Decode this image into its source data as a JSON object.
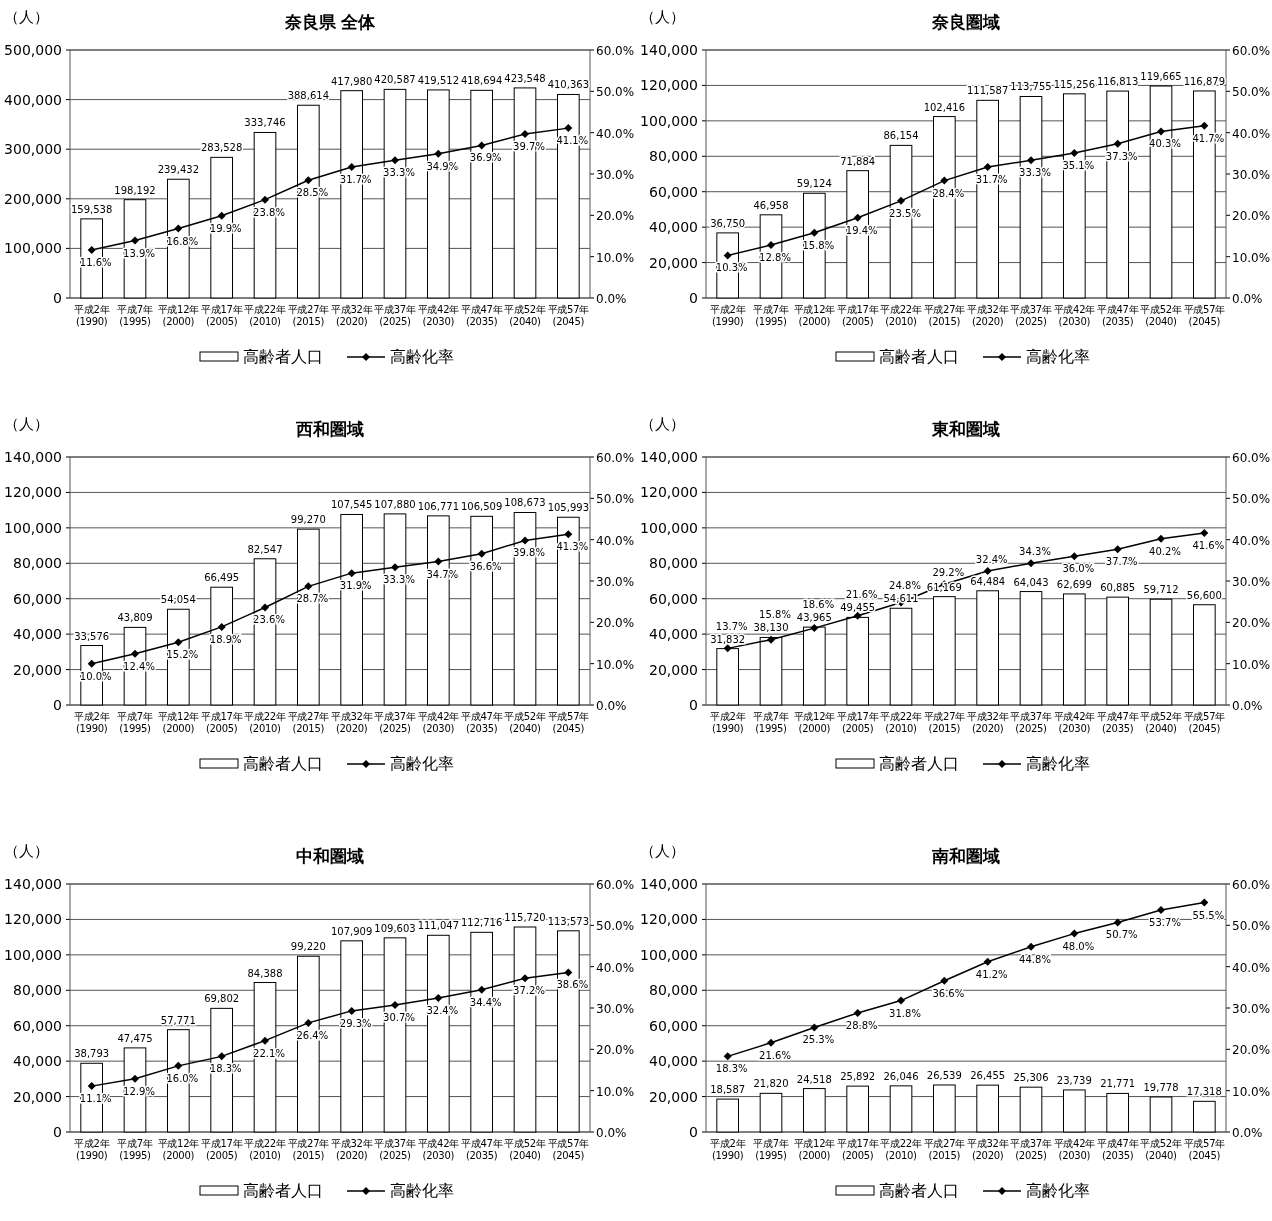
{
  "chart_data": [
    {
      "type": "bar",
      "title": "奈良県 全体",
      "ylabel": "（人）",
      "categories": [
        "平成2年\n(1990)",
        "平成7年\n(1995)",
        "平成12年\n(2000)",
        "平成17年\n(2005)",
        "平成22年\n(2010)",
        "平成27年\n(2015)",
        "平成32年\n(2020)",
        "平成37年\n(2025)",
        "平成42年\n(2030)",
        "平成47年\n(2035)",
        "平成52年\n(2040)",
        "平成57年\n(2045)"
      ],
      "ylim": [
        0,
        500000
      ],
      "yticks": [
        {
          "value": 0,
          "label": "0"
        },
        {
          "value": 100000,
          "label": "100,000"
        },
        {
          "value": 200000,
          "label": "200,000"
        },
        {
          "value": 300000,
          "label": "300,000"
        },
        {
          "value": 400000,
          "label": "400,000"
        },
        {
          "value": 500000,
          "label": "500,000"
        }
      ],
      "y2lim": [
        0,
        60
      ],
      "y2ticks": [
        {
          "value": 0,
          "label": "0.0%"
        },
        {
          "value": 10,
          "label": "10.0%"
        },
        {
          "value": 20,
          "label": "20.0%"
        },
        {
          "value": 30,
          "label": "30.0%"
        },
        {
          "value": 40,
          "label": "40.0%"
        },
        {
          "value": 50,
          "label": "50.0%"
        },
        {
          "value": 60,
          "label": "60.0%"
        }
      ],
      "grid": "y",
      "legend": "bottom",
      "series": [
        {
          "name": "高齢者人口",
          "type": "bar",
          "color": "#ffffff",
          "values": [
            159538,
            198192,
            239432,
            283528,
            333746,
            388614,
            417980,
            420587,
            419512,
            418694,
            423548,
            410363
          ],
          "value_labels": [
            "159,538",
            "198,192",
            "239,432",
            "283,528",
            "333,746",
            "388,614",
            "417,980",
            "420,587",
            "419,512",
            "418,694",
            "423,548",
            "410,363"
          ]
        },
        {
          "name": "高齢化率",
          "type": "line",
          "axis": "y2",
          "color": "#000000",
          "marker": "diamond",
          "values": [
            11.6,
            13.9,
            16.8,
            19.9,
            23.8,
            28.5,
            31.7,
            33.3,
            34.9,
            36.9,
            39.7,
            41.1
          ],
          "value_labels": [
            "11.6%",
            "13.9%",
            "16.8%",
            "19.9%",
            "23.8%",
            "28.5%",
            "31.7%",
            "33.3%",
            "34.9%",
            "36.9%",
            "39.7%",
            "41.1%"
          ]
        }
      ]
    },
    {
      "type": "bar",
      "title": "奈良圏域",
      "ylabel": "（人）",
      "categories": [
        "平成2年\n(1990)",
        "平成7年\n(1995)",
        "平成12年\n(2000)",
        "平成17年\n(2005)",
        "平成22年\n(2010)",
        "平成27年\n(2015)",
        "平成32年\n(2020)",
        "平成37年\n(2025)",
        "平成42年\n(2030)",
        "平成47年\n(2035)",
        "平成52年\n(2040)",
        "平成57年\n(2045)"
      ],
      "ylim": [
        0,
        140000
      ],
      "yticks": [
        {
          "value": 0,
          "label": "0"
        },
        {
          "value": 20000,
          "label": "20,000"
        },
        {
          "value": 40000,
          "label": "40,000"
        },
        {
          "value": 60000,
          "label": "60,000"
        },
        {
          "value": 80000,
          "label": "80,000"
        },
        {
          "value": 100000,
          "label": "100,000"
        },
        {
          "value": 120000,
          "label": "120,000"
        },
        {
          "value": 140000,
          "label": "140,000"
        }
      ],
      "y2lim": [
        0,
        60
      ],
      "y2ticks": [
        {
          "value": 0,
          "label": "0.0%"
        },
        {
          "value": 10,
          "label": "10.0%"
        },
        {
          "value": 20,
          "label": "20.0%"
        },
        {
          "value": 30,
          "label": "30.0%"
        },
        {
          "value": 40,
          "label": "40.0%"
        },
        {
          "value": 50,
          "label": "50.0%"
        },
        {
          "value": 60,
          "label": "60.0%"
        }
      ],
      "grid": "y",
      "legend": "bottom",
      "series": [
        {
          "name": "高齢者人口",
          "type": "bar",
          "color": "#ffffff",
          "values": [
            36750,
            46958,
            59124,
            71884,
            86154,
            102416,
            111587,
            113755,
            115256,
            116813,
            119665,
            116879
          ],
          "value_labels": [
            "36,750",
            "46,958",
            "59,124",
            "71,884",
            "86,154",
            "102,416",
            "111,587",
            "113,755",
            "115,256",
            "116,813",
            "119,665",
            "116,879"
          ]
        },
        {
          "name": "高齢化率",
          "type": "line",
          "axis": "y2",
          "color": "#000000",
          "marker": "diamond",
          "values": [
            10.3,
            12.8,
            15.8,
            19.4,
            23.5,
            28.4,
            31.7,
            33.3,
            35.1,
            37.3,
            40.3,
            41.7
          ],
          "value_labels": [
            "10.3%",
            "12.8%",
            "15.8%",
            "19.4%",
            "23.5%",
            "28.4%",
            "31.7%",
            "33.3%",
            "35.1%",
            "37.3%",
            "40.3%",
            "41.7%"
          ]
        }
      ]
    },
    {
      "type": "bar",
      "title": "西和圏域",
      "ylabel": "（人）",
      "categories": [
        "平成2年\n(1990)",
        "平成7年\n(1995)",
        "平成12年\n(2000)",
        "平成17年\n(2005)",
        "平成22年\n(2010)",
        "平成27年\n(2015)",
        "平成32年\n(2020)",
        "平成37年\n(2025)",
        "平成42年\n(2030)",
        "平成47年\n(2035)",
        "平成52年\n(2040)",
        "平成57年\n(2045)"
      ],
      "ylim": [
        0,
        140000
      ],
      "yticks": [
        {
          "value": 0,
          "label": "0"
        },
        {
          "value": 20000,
          "label": "20,000"
        },
        {
          "value": 40000,
          "label": "40,000"
        },
        {
          "value": 60000,
          "label": "60,000"
        },
        {
          "value": 80000,
          "label": "80,000"
        },
        {
          "value": 100000,
          "label": "100,000"
        },
        {
          "value": 120000,
          "label": "120,000"
        },
        {
          "value": 140000,
          "label": "140,000"
        }
      ],
      "y2lim": [
        0,
        60
      ],
      "y2ticks": [
        {
          "value": 0,
          "label": "0.0%"
        },
        {
          "value": 10,
          "label": "10.0%"
        },
        {
          "value": 20,
          "label": "20.0%"
        },
        {
          "value": 30,
          "label": "30.0%"
        },
        {
          "value": 40,
          "label": "40.0%"
        },
        {
          "value": 50,
          "label": "50.0%"
        },
        {
          "value": 60,
          "label": "60.0%"
        }
      ],
      "grid": "y",
      "legend": "bottom",
      "series": [
        {
          "name": "高齢者人口",
          "type": "bar",
          "color": "#ffffff",
          "values": [
            33576,
            43809,
            54054,
            66495,
            82547,
            99270,
            107545,
            107880,
            106771,
            106509,
            108673,
            105993
          ],
          "value_labels": [
            "33,576",
            "43,809",
            "54,054",
            "66,495",
            "82,547",
            "99,270",
            "107,545",
            "107,880",
            "106,771",
            "106,509",
            "108,673",
            "105,993"
          ]
        },
        {
          "name": "高齢化率",
          "type": "line",
          "axis": "y2",
          "color": "#000000",
          "marker": "diamond",
          "values": [
            10.0,
            12.4,
            15.2,
            18.9,
            23.6,
            28.7,
            31.9,
            33.3,
            34.7,
            36.6,
            39.8,
            41.3
          ],
          "value_labels": [
            "10.0%",
            "12.4%",
            "15.2%",
            "18.9%",
            "23.6%",
            "28.7%",
            "31.9%",
            "33.3%",
            "34.7%",
            "36.6%",
            "39.8%",
            "41.3%"
          ]
        }
      ]
    },
    {
      "type": "bar",
      "title": "東和圏域",
      "ylabel": "（人）",
      "categories": [
        "平成2年\n(1990)",
        "平成7年\n(1995)",
        "平成12年\n(2000)",
        "平成17年\n(2005)",
        "平成22年\n(2010)",
        "平成27年\n(2015)",
        "平成32年\n(2020)",
        "平成37年\n(2025)",
        "平成42年\n(2030)",
        "平成47年\n(2035)",
        "平成52年\n(2040)",
        "平成57年\n(2045)"
      ],
      "ylim": [
        0,
        140000
      ],
      "yticks": [
        {
          "value": 0,
          "label": "0"
        },
        {
          "value": 20000,
          "label": "20,000"
        },
        {
          "value": 40000,
          "label": "40,000"
        },
        {
          "value": 60000,
          "label": "60,000"
        },
        {
          "value": 80000,
          "label": "80,000"
        },
        {
          "value": 100000,
          "label": "100,000"
        },
        {
          "value": 120000,
          "label": "120,000"
        },
        {
          "value": 140000,
          "label": "140,000"
        }
      ],
      "y2lim": [
        0,
        60
      ],
      "y2ticks": [
        {
          "value": 0,
          "label": "0.0%"
        },
        {
          "value": 10,
          "label": "10.0%"
        },
        {
          "value": 20,
          "label": "20.0%"
        },
        {
          "value": 30,
          "label": "30.0%"
        },
        {
          "value": 40,
          "label": "40.0%"
        },
        {
          "value": 50,
          "label": "50.0%"
        },
        {
          "value": 60,
          "label": "60.0%"
        }
      ],
      "grid": "y",
      "legend": "bottom",
      "series": [
        {
          "name": "高齢者人口",
          "type": "bar",
          "color": "#ffffff",
          "values": [
            31832,
            38130,
            43965,
            49455,
            54611,
            61169,
            64484,
            64043,
            62699,
            60885,
            59712,
            56600
          ],
          "value_labels": [
            "31,832",
            "38,130",
            "43,965",
            "49,455",
            "54,611",
            "61,169",
            "64,484",
            "64,043",
            "62,699",
            "60,885",
            "59,712",
            "56,600"
          ]
        },
        {
          "name": "高齢化率",
          "type": "line",
          "axis": "y2",
          "color": "#000000",
          "marker": "diamond",
          "values": [
            13.7,
            15.8,
            18.6,
            21.6,
            24.8,
            29.2,
            32.4,
            34.3,
            36.0,
            37.7,
            40.2,
            41.6
          ],
          "value_labels": [
            "13.7%",
            "15.8%",
            "18.6%",
            "21.6%",
            "24.8%",
            "29.2%",
            "32.4%",
            "34.3%",
            "36.0%",
            "37.7%",
            "40.2%",
            "41.6%"
          ]
        }
      ]
    },
    {
      "type": "bar",
      "title": "中和圏域",
      "ylabel": "（人）",
      "categories": [
        "平成2年\n(1990)",
        "平成7年\n(1995)",
        "平成12年\n(2000)",
        "平成17年\n(2005)",
        "平成22年\n(2010)",
        "平成27年\n(2015)",
        "平成32年\n(2020)",
        "平成37年\n(2025)",
        "平成42年\n(2030)",
        "平成47年\n(2035)",
        "平成52年\n(2040)",
        "平成57年\n(2045)"
      ],
      "ylim": [
        0,
        140000
      ],
      "yticks": [
        {
          "value": 0,
          "label": "0"
        },
        {
          "value": 20000,
          "label": "20,000"
        },
        {
          "value": 40000,
          "label": "40,000"
        },
        {
          "value": 60000,
          "label": "60,000"
        },
        {
          "value": 80000,
          "label": "80,000"
        },
        {
          "value": 100000,
          "label": "100,000"
        },
        {
          "value": 120000,
          "label": "120,000"
        },
        {
          "value": 140000,
          "label": "140,000"
        }
      ],
      "y2lim": [
        0,
        60
      ],
      "y2ticks": [
        {
          "value": 0,
          "label": "0.0%"
        },
        {
          "value": 10,
          "label": "10.0%"
        },
        {
          "value": 20,
          "label": "20.0%"
        },
        {
          "value": 30,
          "label": "30.0%"
        },
        {
          "value": 40,
          "label": "40.0%"
        },
        {
          "value": 50,
          "label": "50.0%"
        },
        {
          "value": 60,
          "label": "60.0%"
        }
      ],
      "grid": "y",
      "legend": "bottom",
      "series": [
        {
          "name": "高齢者人口",
          "type": "bar",
          "color": "#ffffff",
          "values": [
            38793,
            47475,
            57771,
            69802,
            84388,
            99220,
            107909,
            109603,
            111047,
            112716,
            115720,
            113573
          ],
          "value_labels": [
            "38,793",
            "47,475",
            "57,771",
            "69,802",
            "84,388",
            "99,220",
            "107,909",
            "109,603",
            "111,047",
            "112,716",
            "115,720",
            "113,573"
          ]
        },
        {
          "name": "高齢化率",
          "type": "line",
          "axis": "y2",
          "color": "#000000",
          "marker": "diamond",
          "values": [
            11.1,
            12.9,
            16.0,
            18.3,
            22.1,
            26.4,
            29.3,
            30.7,
            32.4,
            34.4,
            37.2,
            38.6
          ],
          "value_labels": [
            "11.1%",
            "12.9%",
            "16.0%",
            "18.3%",
            "22.1%",
            "26.4%",
            "29.3%",
            "30.7%",
            "32.4%",
            "34.4%",
            "37.2%",
            "38.6%"
          ]
        }
      ]
    },
    {
      "type": "bar",
      "title": "南和圏域",
      "ylabel": "（人）",
      "categories": [
        "平成2年\n(1990)",
        "平成7年\n(1995)",
        "平成12年\n(2000)",
        "平成17年\n(2005)",
        "平成22年\n(2010)",
        "平成27年\n(2015)",
        "平成32年\n(2020)",
        "平成37年\n(2025)",
        "平成42年\n(2030)",
        "平成47年\n(2035)",
        "平成52年\n(2040)",
        "平成57年\n(2045)"
      ],
      "ylim": [
        0,
        140000
      ],
      "yticks": [
        {
          "value": 0,
          "label": "0"
        },
        {
          "value": 20000,
          "label": "20,000"
        },
        {
          "value": 40000,
          "label": "40,000"
        },
        {
          "value": 60000,
          "label": "60,000"
        },
        {
          "value": 80000,
          "label": "80,000"
        },
        {
          "value": 100000,
          "label": "100,000"
        },
        {
          "value": 120000,
          "label": "120,000"
        },
        {
          "value": 140000,
          "label": "140,000"
        }
      ],
      "y2lim": [
        0,
        60
      ],
      "y2ticks": [
        {
          "value": 0,
          "label": "0.0%"
        },
        {
          "value": 10,
          "label": "10.0%"
        },
        {
          "value": 20,
          "label": "20.0%"
        },
        {
          "value": 30,
          "label": "30.0%"
        },
        {
          "value": 40,
          "label": "40.0%"
        },
        {
          "value": 50,
          "label": "50.0%"
        },
        {
          "value": 60,
          "label": "60.0%"
        }
      ],
      "grid": "y",
      "legend": "bottom",
      "series": [
        {
          "name": "高齢者人口",
          "type": "bar",
          "color": "#ffffff",
          "values": [
            18587,
            21820,
            24518,
            25892,
            26046,
            26539,
            26455,
            25306,
            23739,
            21771,
            19778,
            17318
          ],
          "value_labels": [
            "18,587",
            "21,820",
            "24,518",
            "25,892",
            "26,046",
            "26,539",
            "26,455",
            "25,306",
            "23,739",
            "21,771",
            "19,778",
            "17,318"
          ]
        },
        {
          "name": "高齢化率",
          "type": "line",
          "axis": "y2",
          "color": "#000000",
          "marker": "diamond",
          "values": [
            18.3,
            21.6,
            25.3,
            28.8,
            31.8,
            36.6,
            41.2,
            44.8,
            48.0,
            50.7,
            53.7,
            55.5
          ],
          "value_labels": [
            "18.3%",
            "21.6%",
            "25.3%",
            "28.8%",
            "31.8%",
            "36.6%",
            "41.2%",
            "44.8%",
            "48.0%",
            "50.7%",
            "53.7%",
            "55.5%"
          ]
        }
      ]
    }
  ]
}
